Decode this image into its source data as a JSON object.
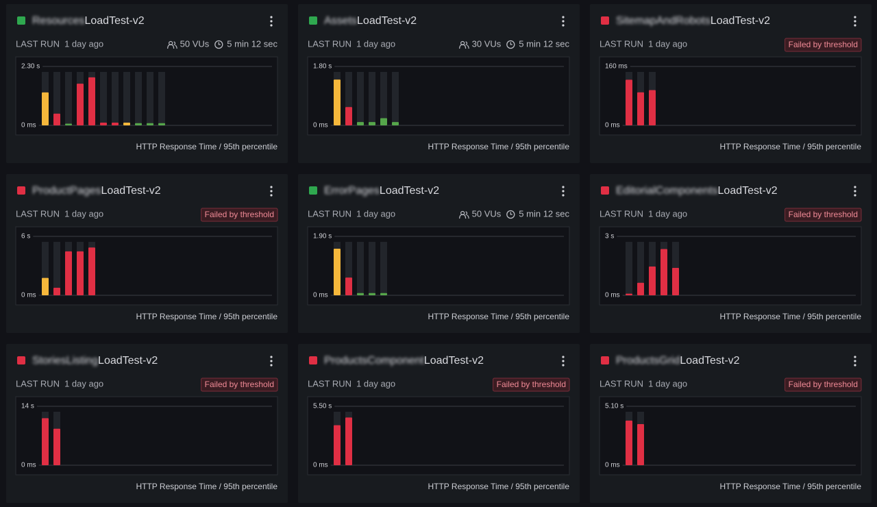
{
  "cards": [
    {
      "status_color": "#2fa84f",
      "name": "Resources",
      "suffix": "LoadTest-v2",
      "last_run_label": "LAST RUN",
      "last_run": "1 day ago",
      "vus": "50 VUs",
      "duration": "5 min 12 sec",
      "chart": {
        "type": "bar",
        "ylim": [
          0,
          2.3
        ],
        "yticks": [
          {
            "value": 0,
            "label": "0 ms"
          },
          {
            "value": 2.3,
            "label": "2.30 s"
          }
        ],
        "values": [
          1.26,
          0.43,
          0.04,
          1.6,
          1.85,
          0.08,
          0.08,
          0.08,
          0.06,
          0.06,
          0.06
        ],
        "colors": [
          "#f5b73b",
          "#e02f44",
          "#56a64b",
          "#e02f44",
          "#e02f44",
          "#e02f44",
          "#e02f44",
          "#f5b73b",
          "#56a64b",
          "#56a64b",
          "#56a64b"
        ]
      },
      "footer": "HTTP Response Time / 95th percentile"
    },
    {
      "status_color": "#2fa84f",
      "name": "Assets",
      "suffix": "LoadTest-v2",
      "last_run_label": "LAST RUN",
      "last_run": "1 day ago",
      "vus": "30 VUs",
      "duration": "5 min 12 sec",
      "chart": {
        "type": "bar",
        "ylim": [
          0,
          1.8
        ],
        "yticks": [
          {
            "value": 0,
            "label": "0 ms"
          },
          {
            "value": 1.8,
            "label": "1.80 s"
          }
        ],
        "values": [
          1.38,
          0.54,
          0.08,
          0.08,
          0.2,
          0.08
        ],
        "colors": [
          "#f5b73b",
          "#e02f44",
          "#56a64b",
          "#56a64b",
          "#56a64b",
          "#56a64b"
        ]
      },
      "footer": "HTTP Response Time / 95th percentile"
    },
    {
      "status_color": "#e02f44",
      "name": "SitemapAndRobots",
      "suffix": "LoadTest-v2",
      "last_run_label": "LAST RUN",
      "last_run": "1 day ago",
      "badge": "Failed by threshold",
      "chart": {
        "type": "bar",
        "ylim": [
          0,
          160
        ],
        "yticks": [
          {
            "value": 0,
            "label": "0 ms"
          },
          {
            "value": 160,
            "label": "160 ms"
          }
        ],
        "values": [
          122,
          88,
          94
        ],
        "colors": [
          "#e02f44",
          "#e02f44",
          "#e02f44"
        ]
      },
      "footer": "HTTP Response Time / 95th percentile"
    },
    {
      "status_color": "#e02f44",
      "name": "ProductPages",
      "suffix": "LoadTest-v2",
      "last_run_label": "LAST RUN",
      "last_run": "1 day ago",
      "badge": "Failed by threshold",
      "chart": {
        "type": "bar",
        "ylim": [
          0,
          6
        ],
        "yticks": [
          {
            "value": 0,
            "label": "0 ms"
          },
          {
            "value": 6,
            "label": "6 s"
          }
        ],
        "values": [
          1.7,
          0.7,
          4.4,
          4.4,
          4.8
        ],
        "colors": [
          "#f5b73b",
          "#e02f44",
          "#e02f44",
          "#e02f44",
          "#e02f44"
        ]
      },
      "footer": "HTTP Response Time / 95th percentile"
    },
    {
      "status_color": "#2fa84f",
      "name": "ErrorPages",
      "suffix": "LoadTest-v2",
      "last_run_label": "LAST RUN",
      "last_run": "1 day ago",
      "vus": "50 VUs",
      "duration": "5 min 12 sec",
      "chart": {
        "type": "bar",
        "ylim": [
          0,
          1.9
        ],
        "yticks": [
          {
            "value": 0,
            "label": "0 ms"
          },
          {
            "value": 1.9,
            "label": "1.90 s"
          }
        ],
        "values": [
          1.48,
          0.55,
          0.05,
          0.05,
          0.05
        ],
        "colors": [
          "#f5b73b",
          "#e02f44",
          "#56a64b",
          "#56a64b",
          "#56a64b"
        ]
      },
      "footer": "HTTP Response Time / 95th percentile"
    },
    {
      "status_color": "#e02f44",
      "name": "EditorialComponents",
      "suffix": "LoadTest-v2",
      "last_run_label": "LAST RUN",
      "last_run": "1 day ago",
      "badge": "Failed by threshold",
      "chart": {
        "type": "bar",
        "ylim": [
          0,
          3
        ],
        "yticks": [
          {
            "value": 0,
            "label": "0 ms"
          },
          {
            "value": 3,
            "label": "3 s"
          }
        ],
        "values": [
          0.05,
          0.6,
          1.43,
          2.32,
          1.36
        ],
        "colors": [
          "#e02f44",
          "#e02f44",
          "#e02f44",
          "#e02f44",
          "#e02f44"
        ]
      },
      "footer": "HTTP Response Time / 95th percentile"
    },
    {
      "status_color": "#e02f44",
      "name": "StoriesListing",
      "suffix": "LoadTest-v2",
      "last_run_label": "LAST RUN",
      "last_run": "1 day ago",
      "badge": "Failed by threshold",
      "chart": {
        "type": "bar",
        "ylim": [
          0,
          14
        ],
        "yticks": [
          {
            "value": 0,
            "label": "0 ms"
          },
          {
            "value": 14,
            "label": "14 s"
          }
        ],
        "values": [
          11,
          8.5
        ],
        "colors": [
          "#e02f44",
          "#e02f44"
        ]
      },
      "footer": "HTTP Response Time / 95th percentile"
    },
    {
      "status_color": "#e02f44",
      "name": "ProductsComponent",
      "suffix": "LoadTest-v2",
      "last_run_label": "LAST RUN",
      "last_run": "1 day ago",
      "badge": "Failed by threshold",
      "chart": {
        "type": "bar",
        "ylim": [
          0,
          5.5
        ],
        "yticks": [
          {
            "value": 0,
            "label": "0 ms"
          },
          {
            "value": 5.5,
            "label": "5.50 s"
          }
        ],
        "values": [
          3.67,
          4.39
        ],
        "colors": [
          "#e02f44",
          "#e02f44"
        ]
      },
      "footer": "HTTP Response Time / 95th percentile"
    },
    {
      "status_color": "#e02f44",
      "name": "ProductsGrid",
      "suffix": "LoadTest-v2",
      "last_run_label": "LAST RUN",
      "last_run": "1 day ago",
      "badge": "Failed by threshold",
      "chart": {
        "type": "bar",
        "ylim": [
          0,
          5.1
        ],
        "yticks": [
          {
            "value": 0,
            "label": "0 ms"
          },
          {
            "value": 5.1,
            "label": "5.10 s"
          }
        ],
        "values": [
          3.8,
          3.5
        ],
        "colors": [
          "#e02f44",
          "#e02f44"
        ]
      },
      "footer": "HTTP Response Time / 95th percentile"
    }
  ]
}
